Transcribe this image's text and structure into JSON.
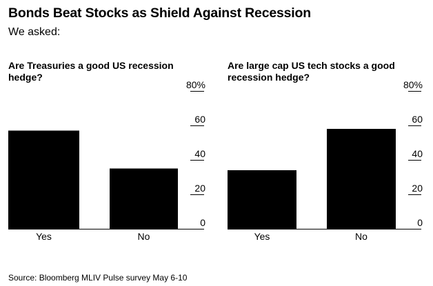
{
  "header": {
    "title": "Bonds Beat Stocks as Shield Against Recession",
    "subtitle": "We asked:"
  },
  "footer": {
    "source": "Source: Bloomberg MLIV Pulse survey May 6-10"
  },
  "colors": {
    "bar": "#000000",
    "text": "#000000",
    "background": "#ffffff"
  },
  "chart_data": [
    {
      "type": "bar",
      "title": "Are Treasuries a good US recession hedge?",
      "categories": [
        "Yes",
        "No"
      ],
      "values": [
        57,
        35
      ],
      "ylim": [
        0,
        80
      ],
      "yticks": [
        0,
        20,
        40,
        60,
        80
      ],
      "ytick_labels": [
        "0",
        "20",
        "40",
        "60",
        "80%"
      ],
      "xlabel": "",
      "ylabel": "",
      "grid": false
    },
    {
      "type": "bar",
      "title": "Are large cap US tech stocks a good recession hedge?",
      "categories": [
        "Yes",
        "No"
      ],
      "values": [
        34,
        58
      ],
      "ylim": [
        0,
        80
      ],
      "yticks": [
        0,
        20,
        40,
        60,
        80
      ],
      "ytick_labels": [
        "0",
        "20",
        "40",
        "60",
        "80%"
      ],
      "xlabel": "",
      "ylabel": "",
      "grid": false
    }
  ]
}
